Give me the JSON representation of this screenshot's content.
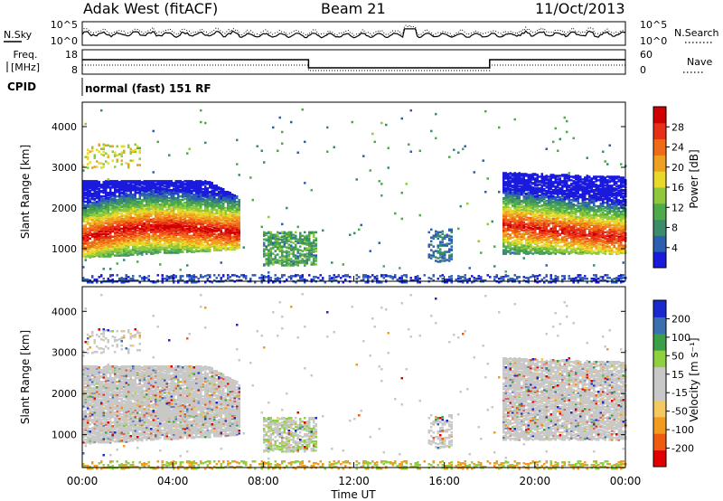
{
  "header": {
    "station": "Adak West (fitACF)",
    "beam": "Beam 21",
    "date": "11/Oct/2013"
  },
  "noise_panel": {
    "left_label": "N.Sky",
    "right_label": "N.Search",
    "left_ticks": [
      "10^5",
      "10^0"
    ],
    "right_ticks": [
      "10^5",
      "10^0"
    ]
  },
  "freq_panel": {
    "left_label_line1": "Freq.",
    "left_label_line2": "[MHz]",
    "right_label": "Nave",
    "left_ticks": [
      "18",
      "8"
    ],
    "right_ticks": [
      "60",
      "0"
    ]
  },
  "cpid": {
    "label": "CPID",
    "value": "normal (fast) 151 RF"
  },
  "colors": {
    "power_scale": [
      "#1a1adc",
      "#2c5fb0",
      "#3a8c6a",
      "#4faa4a",
      "#8fc83a",
      "#e8d82a",
      "#f0a020",
      "#f06a18",
      "#e83018",
      "#d00000"
    ],
    "velocity_scale": [
      "#e00000",
      "#f05a10",
      "#f39a20",
      "#f5c860",
      "#c8c8c8",
      "#c8c8c8",
      "#8fd040",
      "#3aa048",
      "#3a70b0",
      "#1a2ad0"
    ]
  },
  "chart_data": [
    {
      "type": "heatmap",
      "name_text": "Power",
      "ylabel": "Slant Range [km]",
      "xlabel": "",
      "xlim": [
        "00:00",
        "24:00"
      ],
      "ylim": [
        200,
        4600
      ],
      "yticks": [
        "1000",
        "2000",
        "3000",
        "4000"
      ],
      "colorbar_label": "Power [dB]",
      "colorbar_range": [
        0,
        32
      ],
      "colorbar_ticks": [
        "4",
        "8",
        "12",
        "16",
        "20",
        "24",
        "28"
      ],
      "features": [
        {
          "t_start_h": 0.0,
          "t_end_h": 6.9,
          "range_km": [
            800,
            3000
          ],
          "peak_db": 28
        },
        {
          "t_start_h": 7.9,
          "t_end_h": 10.3,
          "range_km": [
            600,
            1400
          ],
          "peak_db": 14
        },
        {
          "t_start_h": 15.0,
          "t_end_h": 16.5,
          "range_km": [
            700,
            1500
          ],
          "peak_db": 8
        },
        {
          "t_start_h": 18.5,
          "t_end_h": 24.0,
          "range_km": [
            900,
            2800
          ],
          "peak_db": 26
        }
      ]
    },
    {
      "type": "heatmap",
      "name_text": "Velocity",
      "ylabel": "Slant Range [km]",
      "xlabel": "Time UT",
      "xlim": [
        "00:00",
        "24:00"
      ],
      "ylim": [
        200,
        4600
      ],
      "xticks": [
        "00:00",
        "04:00",
        "08:00",
        "12:00",
        "16:00",
        "20:00",
        "00:00"
      ],
      "yticks": [
        "1000",
        "2000",
        "3000",
        "4000"
      ],
      "colorbar_label": "Velocity [m s⁻¹]",
      "colorbar_range": [
        -250,
        250
      ],
      "colorbar_ticks": [
        "200",
        "100",
        "50",
        "15",
        "-15",
        "-50",
        "-100",
        "-200"
      ]
    }
  ]
}
